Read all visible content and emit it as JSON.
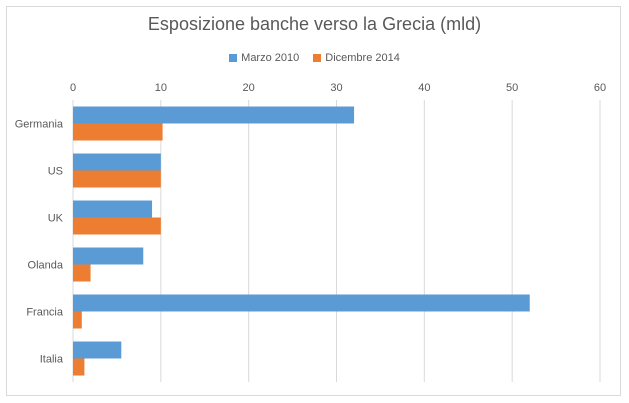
{
  "chart_data": {
    "type": "bar",
    "orientation": "horizontal",
    "title": "Esposizione banche verso la Grecia (mld)",
    "categories": [
      "Germania",
      "US",
      "UK",
      "Olanda",
      "Francia",
      "Italia"
    ],
    "series": [
      {
        "name": "Marzo 2010",
        "color": "#5b9bd5",
        "values": [
          32,
          10,
          9,
          8,
          52,
          5.5
        ]
      },
      {
        "name": "Dicembre 2014",
        "color": "#ed7d31",
        "values": [
          10.2,
          10,
          10,
          2,
          1,
          1.3
        ]
      }
    ],
    "xlim": [
      0,
      60
    ],
    "xticks": [
      0,
      10,
      20,
      30,
      40,
      50,
      60
    ],
    "xaxis_position": "top",
    "grid": true,
    "legend_position": "top"
  }
}
